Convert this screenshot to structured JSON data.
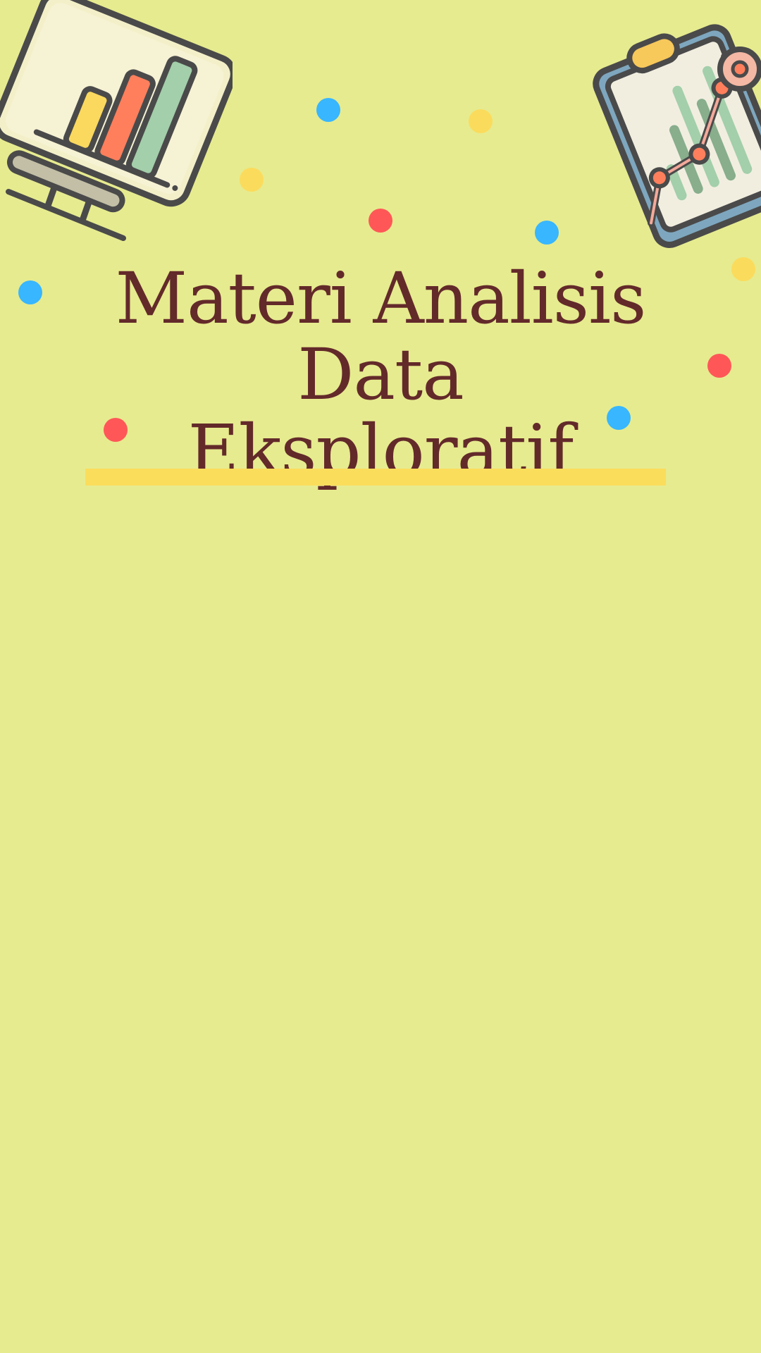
{
  "slide": {
    "title_lines": [
      "Materi Analisis Data",
      "Eksploratif"
    ]
  },
  "colors": {
    "background": "#e6eb8f",
    "title": "#632a2a",
    "accent_bar": "#fbdd5c",
    "dot_blue": "#38b6ff",
    "dot_yellow": "#fbdb5c",
    "dot_red": "#ff5757"
  },
  "illustrations": {
    "left": "bar-chart-monitor-icon",
    "right": "line-chart-clipboard-icon"
  }
}
